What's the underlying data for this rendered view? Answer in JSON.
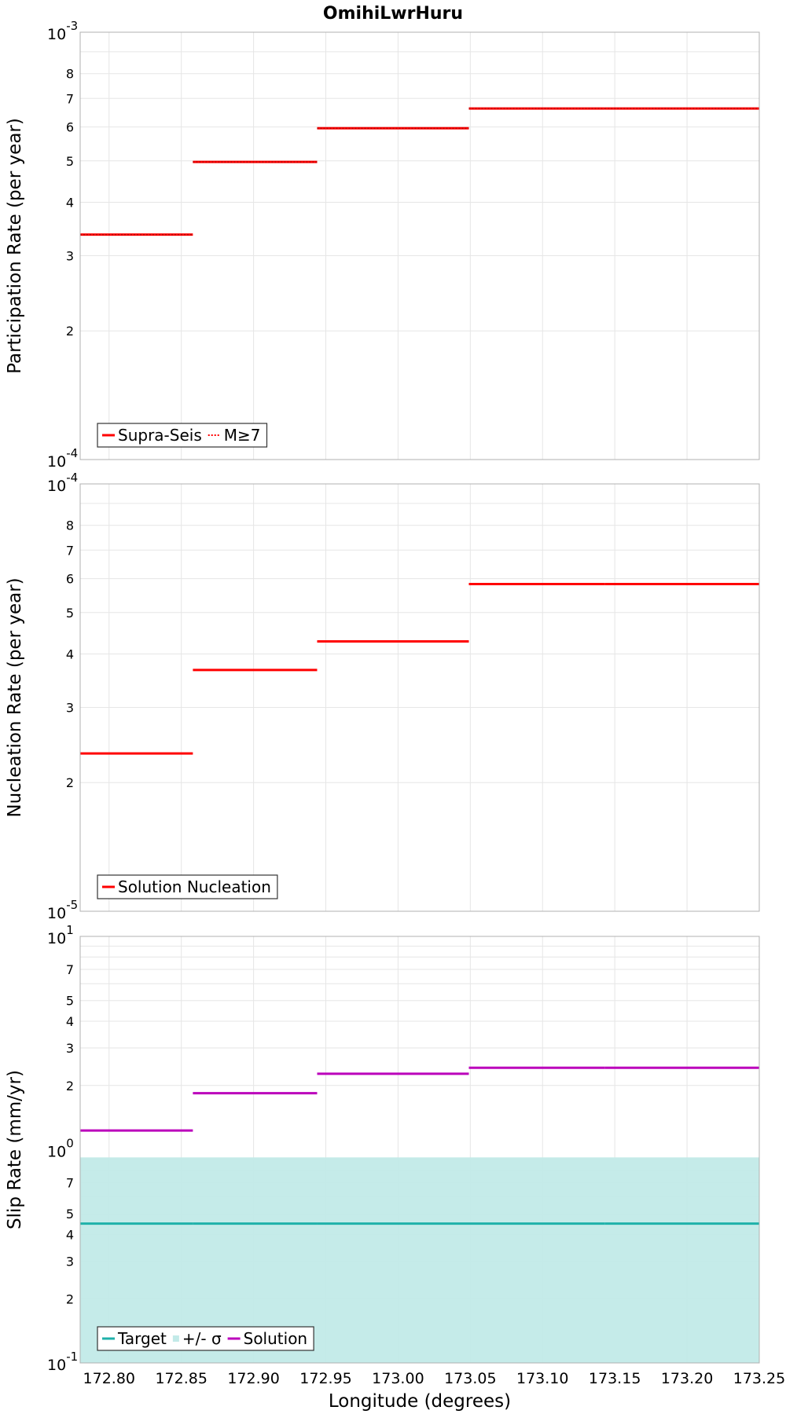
{
  "title": "OmihiLwrHuru",
  "chart_data": [
    {
      "type": "line",
      "step": true,
      "ylabel": "Participation Rate (per year)",
      "yscale": "log",
      "ylim": [
        0.0001,
        0.001
      ],
      "y_major_labels": [
        {
          "base": "10",
          "exp": "-4"
        },
        {
          "base": "10",
          "exp": "-3"
        }
      ],
      "y_minor_labels": [
        "2",
        "3",
        "4",
        "5",
        "6",
        "7",
        "8"
      ],
      "x_edges": [
        172.78,
        172.858,
        172.944,
        173.049,
        173.143,
        173.25
      ],
      "series": [
        {
          "name": "Supra-Seis",
          "color": "#ff0000",
          "style": "solid",
          "values": [
            0.000336,
            0.000497,
            0.000596,
            0.000663,
            0.000663
          ]
        },
        {
          "name": "M≥7",
          "color": "#ff0000",
          "style": "dotted",
          "values": [
            0.000336,
            0.000497,
            0.000596,
            0.000663,
            0.000663
          ]
        }
      ],
      "legend": "bottom-left"
    },
    {
      "type": "line",
      "step": true,
      "ylabel": "Nucleation Rate (per year)",
      "yscale": "log",
      "ylim": [
        1e-05,
        0.0001
      ],
      "y_major_labels": [
        {
          "base": "10",
          "exp": "-5"
        },
        {
          "base": "10",
          "exp": "-4"
        }
      ],
      "y_minor_labels": [
        "2",
        "3",
        "4",
        "5",
        "6",
        "7",
        "8"
      ],
      "x_edges": [
        172.78,
        172.858,
        172.944,
        173.049,
        173.143,
        173.25
      ],
      "series": [
        {
          "name": "Solution Nucleation",
          "color": "#ff0000",
          "style": "solid",
          "values": [
            2.34e-05,
            3.67e-05,
            4.28e-05,
            5.83e-05,
            5.83e-05
          ]
        }
      ],
      "legend": "bottom-left"
    },
    {
      "type": "line",
      "step": true,
      "ylabel": "Slip Rate (mm/yr)",
      "xlabel": "Longitude (degrees)",
      "yscale": "log",
      "ylim": [
        0.1,
        10
      ],
      "y_major_labels": [
        {
          "base": "10",
          "exp": "-1"
        },
        {
          "base": "10",
          "exp": "0"
        },
        {
          "base": "10",
          "exp": "1"
        }
      ],
      "y_minor_labels": [
        "2",
        "3",
        "4",
        "5",
        "7",
        "2",
        "3",
        "4",
        "5",
        "7"
      ],
      "x_ticks": [
        "172.80",
        "172.85",
        "172.90",
        "172.95",
        "173.00",
        "173.05",
        "173.10",
        "173.15",
        "173.20",
        "173.25"
      ],
      "xlim": [
        172.78,
        173.25
      ],
      "x_edges": [
        172.78,
        172.858,
        172.944,
        173.049,
        173.143,
        173.25
      ],
      "band": {
        "name": "+/- σ",
        "color": "#c2eae8",
        "lower": 0.1,
        "upper": 0.92
      },
      "series": [
        {
          "name": "Target",
          "color": "#1fb1aa",
          "style": "solid",
          "values": [
            0.45,
            0.45,
            0.45,
            0.45,
            0.45
          ]
        },
        {
          "name": "Solution",
          "color": "#bb00bb",
          "style": "solid",
          "values": [
            1.23,
            1.84,
            2.27,
            2.42,
            2.42
          ]
        }
      ],
      "legend": "bottom-left"
    }
  ]
}
